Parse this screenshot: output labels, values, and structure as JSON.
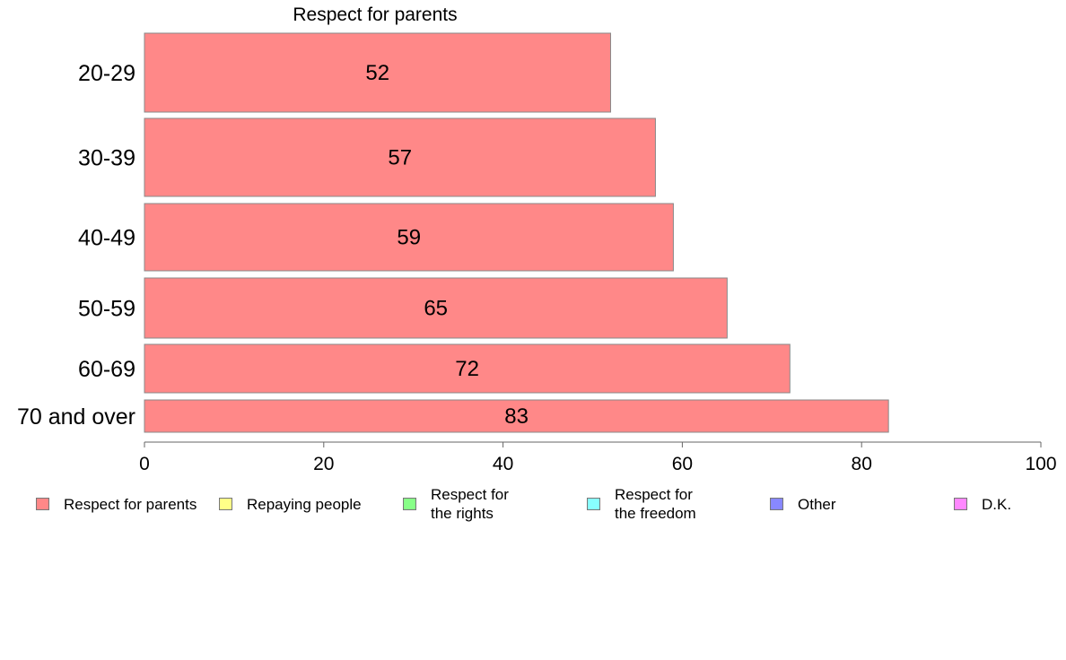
{
  "chart_data": {
    "type": "bar",
    "orientation": "horizontal",
    "title": "Respect for parents",
    "categories": [
      "20-29",
      "30-39",
      "40-49",
      "50-59",
      "60-69",
      "70 and over"
    ],
    "series": [
      {
        "name": "Respect for parents",
        "values": [
          52,
          57,
          59,
          65,
          72,
          83
        ],
        "color": "#ff8888"
      }
    ],
    "xlim": [
      0,
      100
    ],
    "xticks": [
      0,
      20,
      40,
      60,
      80,
      100
    ],
    "grid": false,
    "legend_position": "bottom"
  },
  "legend": {
    "items": [
      {
        "label": "Respect for parents",
        "color": "#ff8888"
      },
      {
        "label": "Repaying people",
        "color": "#ffff88"
      },
      {
        "label": "Respect for\nthe rights",
        "color": "#88ff88"
      },
      {
        "label": "Respect for\nthe freedom",
        "color": "#88ffff"
      },
      {
        "label": "Other",
        "color": "#8888ff"
      },
      {
        "label": "D.K.",
        "color": "#ff88ff"
      }
    ]
  }
}
